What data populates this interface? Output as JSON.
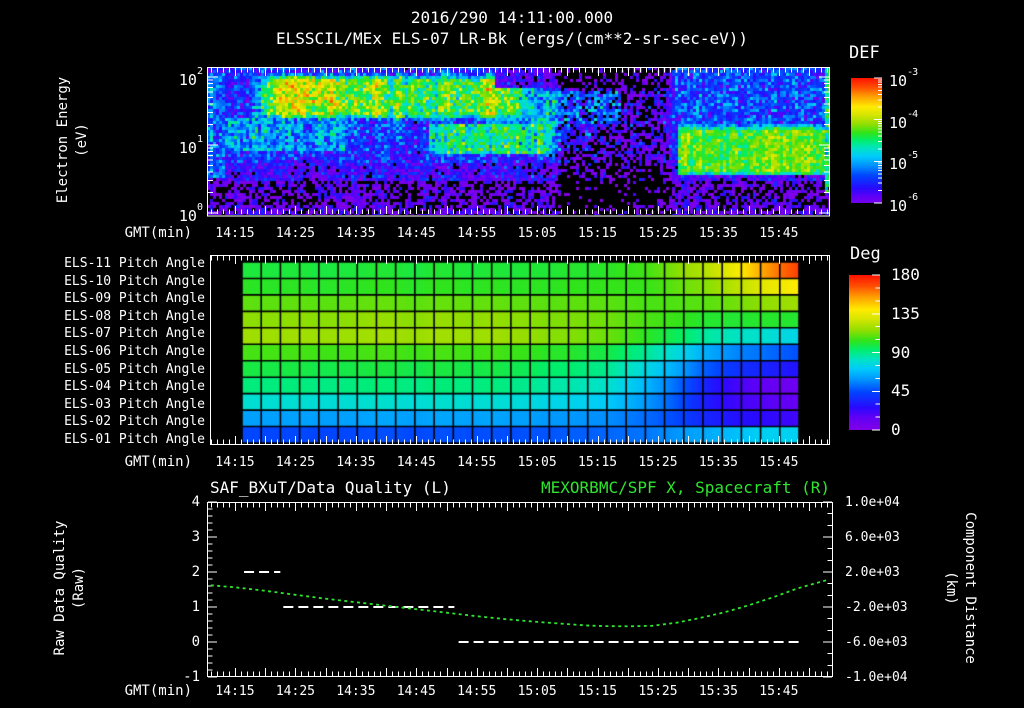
{
  "header": {
    "datetime_title": "2016/290 14:11:00.000",
    "instrument_title": "ELSSCIL/MEx ELS-07 LR-Bk  (ergs/(cm**2-sr-sec-eV))"
  },
  "time_axis": {
    "label": "GMT(min)",
    "start": "14:11",
    "end": "15:53",
    "tick_minutes": [
      15,
      25,
      35,
      45,
      55,
      65,
      75,
      85,
      95,
      105
    ],
    "tick_labels": [
      "14:15",
      "14:25",
      "14:35",
      "14:45",
      "14:55",
      "15:05",
      "15:15",
      "15:25",
      "15:35",
      "15:45"
    ]
  },
  "spectrogram": {
    "ylabel_line1": "Electron Energy",
    "ylabel_line2": "(eV)",
    "ytick_exponents": [
      2,
      1,
      0
    ],
    "colorbar": {
      "title": "DEF",
      "tick_exponents": [
        -3,
        -4,
        -5,
        -6
      ]
    }
  },
  "pitch": {
    "row_labels": [
      "ELS-11 Pitch Angle",
      "ELS-10 Pitch Angle",
      "ELS-09 Pitch Angle",
      "ELS-08 Pitch Angle",
      "ELS-07 Pitch Angle",
      "ELS-06 Pitch Angle",
      "ELS-05 Pitch Angle",
      "ELS-04 Pitch Angle",
      "ELS-03 Pitch Angle",
      "ELS-02 Pitch Angle",
      "ELS-01 Pitch Angle"
    ],
    "colorbar": {
      "title": "Deg",
      "tick_values": [
        180,
        135,
        90,
        45,
        0
      ]
    }
  },
  "bottom": {
    "title_left": "SAF_BXuT/Data Quality (L)",
    "title_right": "MEXORBMC/SPF X, Spacecraft (R)",
    "title_right_color": "#2ee52e",
    "ylabel_left_line1": "Raw Data Quality",
    "ylabel_left_line2": "(Raw)",
    "left_tick_values": [
      4,
      3,
      2,
      1,
      0,
      -1
    ],
    "right_tick_labels": [
      "1.0e+04",
      "6.0e+03",
      "2.0e+03",
      "-2.0e+03",
      "-6.0e+03",
      "-1.0e+04"
    ],
    "ylabel_right_line1": "Component Distance",
    "ylabel_right_line2": "(km)"
  },
  "chart_data": [
    {
      "type": "heatmap",
      "name": "electron-energy-spectrogram",
      "title": "ELSSCIL/MEx ELS-07 LR-Bk (ergs/(cm**2-sr-sec-eV))",
      "x_range_gmt": [
        "14:11",
        "15:53"
      ],
      "y_axis": "Electron Energy (eV)",
      "y_scale": "log",
      "y_range_ev": [
        1,
        140
      ],
      "z_label": "DEF",
      "z_log_range": [
        -6,
        -3
      ],
      "colormap": "rainbow",
      "features": {
        "background_logdef": -5.5,
        "low_energy_dark_below_logE": 0.47,
        "dark_interval_minutes": [
          67,
          88
        ],
        "streaks": [
          {
            "t0": 24.5,
            "w": 2.5,
            "A": 0.5
          },
          {
            "t0": 31.0,
            "w": 1.0,
            "A": 0.35
          },
          {
            "t0": 38.5,
            "w": 0.9,
            "A": 0.5
          },
          {
            "t0": 42.0,
            "w": 0.8,
            "A": 0.55,
            "u0": 1.0
          },
          {
            "t0": 44.5,
            "w": 0.8,
            "A": 0.45
          },
          {
            "t0": 50.0,
            "w": 1.2,
            "A": 0.4
          },
          {
            "t0": 57.0,
            "w": 0.8,
            "A": 0.6,
            "u0": 0.95
          }
        ],
        "bands": [
          {
            "name": "lead-in",
            "t": [
              10.4,
              13.5
            ],
            "logE": [
              0.5,
              2.05
            ],
            "logdef": -5.15
          },
          {
            "name": "early-cyan",
            "t": [
              13,
              34
            ],
            "logE": [
              0.9,
              1.38
            ],
            "logdef": -5.05
          },
          {
            "name": "hot-band",
            "t": [
              13,
              70
            ],
            "logE": [
              1.33,
              2.06
            ],
            "logdef": -4.35
          },
          {
            "name": "mid-band",
            "t": [
              47,
              67.5
            ],
            "logE": [
              0.85,
              1.32
            ],
            "logdef": -4.5
          },
          {
            "name": "cyan-patch",
            "t": [
              56,
              74
            ],
            "logE": [
              0.9,
              1.45
            ],
            "logdef": -5.05
          },
          {
            "name": "green-patch",
            "t": [
              66,
              79
            ],
            "logE": [
              1.32,
              1.78
            ],
            "logdef": -4.75
          },
          {
            "name": "bright-block",
            "t": [
              88.5,
              112.4
            ],
            "logE": [
              0.55,
              1.31
            ],
            "logdef": -4.25
          },
          {
            "name": "upper-after",
            "t": [
              88,
              113.5
            ],
            "logE": [
              1.31,
              2.15
            ],
            "logdef": -5.35
          },
          {
            "name": "right-stripe",
            "t": [
              112.4,
              113.5
            ],
            "logE": [
              0.3,
              2.15
            ],
            "logdef": -4.55
          },
          {
            "name": "top-dark",
            "t": [
              58,
              88
            ],
            "logE": [
              1.85,
              2.15
            ],
            "logdef": -5.8
          }
        ]
      }
    },
    {
      "type": "heatmap",
      "name": "pitch-angle-grid",
      "units": "Deg",
      "z_range": [
        0,
        180
      ],
      "columns": 29,
      "col_start_min": 16.2,
      "col_end_min": 108.3,
      "sample_minutes": [
        16,
        60,
        76,
        84,
        88,
        92,
        96,
        100,
        104,
        108
      ],
      "rows": [
        {
          "label": "ELS-11 Pitch Angle",
          "angles_deg": [
            100,
            100,
            102,
            108,
            115,
            122,
            132,
            144,
            158,
            172
          ]
        },
        {
          "label": "ELS-10 Pitch Angle",
          "angles_deg": [
            103,
            103,
            104,
            106,
            110,
            115,
            121,
            128,
            134,
            141
          ]
        },
        {
          "label": "ELS-09 Pitch Angle",
          "angles_deg": [
            110,
            110,
            109,
            108,
            108,
            110,
            112,
            114,
            116,
            119
          ]
        },
        {
          "label": "ELS-08 Pitch Angle",
          "angles_deg": [
            116,
            116,
            112,
            108,
            105,
            103,
            102,
            101,
            101,
            102
          ]
        },
        {
          "label": "ELS-07 Pitch Angle",
          "angles_deg": [
            119,
            118,
            112,
            103,
            96,
            90,
            85,
            81,
            78,
            76
          ]
        },
        {
          "label": "ELS-06 Pitch Angle",
          "angles_deg": [
            107,
            106,
            99,
            88,
            78,
            68,
            60,
            54,
            50,
            47
          ]
        },
        {
          "label": "ELS-05 Pitch Angle",
          "angles_deg": [
            99,
            98,
            90,
            76,
            64,
            52,
            43,
            36,
            32,
            30
          ]
        },
        {
          "label": "ELS-04 Pitch Angle",
          "angles_deg": [
            92,
            91,
            82,
            66,
            52,
            38,
            26,
            17,
            11,
            10
          ]
        },
        {
          "label": "ELS-03 Pitch Angle",
          "angles_deg": [
            80,
            79,
            72,
            60,
            48,
            36,
            26,
            19,
            15,
            14
          ]
        },
        {
          "label": "ELS-02 Pitch Angle",
          "angles_deg": [
            62,
            62,
            58,
            52,
            45,
            38,
            32,
            27,
            24,
            22
          ]
        },
        {
          "label": "ELS-01 Pitch Angle",
          "angles_deg": [
            45,
            46,
            50,
            55,
            60,
            64,
            68,
            71,
            73,
            74
          ]
        }
      ]
    },
    {
      "type": "line",
      "name": "quality-and-spacecraft-distance",
      "left_axis": {
        "label": "Raw Data Quality (Raw)",
        "range": [
          -1,
          4
        ]
      },
      "right_axis": {
        "label": "Component Distance (km)",
        "range": [
          -10000,
          10000
        ]
      },
      "series": [
        {
          "name": "SAF_BXuT/Data Quality",
          "axis": "left",
          "style": "dashed-white",
          "segments": [
            {
              "value": 2,
              "start_min": 16.5,
              "end_min": 22.5
            },
            {
              "value": 1,
              "start_min": 23.0,
              "end_min": 51.3
            },
            {
              "value": 0,
              "start_min": 52.0,
              "end_min": 109.0
            }
          ]
        },
        {
          "name": "MEXORBMC/SPF X, Spacecraft",
          "axis": "right",
          "style": "dotted-green",
          "color": "#2ee52e",
          "minutes": [
            11,
            15,
            20,
            25,
            30,
            35,
            40,
            45,
            50,
            55,
            60,
            65,
            70,
            73,
            76,
            80,
            84,
            88,
            92,
            96,
            100,
            104,
            108,
            111,
            113
          ],
          "km": [
            480,
            250,
            -150,
            -600,
            -1050,
            -1450,
            -1850,
            -2250,
            -2650,
            -3050,
            -3400,
            -3700,
            -3950,
            -4100,
            -4180,
            -4200,
            -4150,
            -3800,
            -3250,
            -2600,
            -1800,
            -900,
            100,
            700,
            1080
          ]
        }
      ]
    }
  ]
}
